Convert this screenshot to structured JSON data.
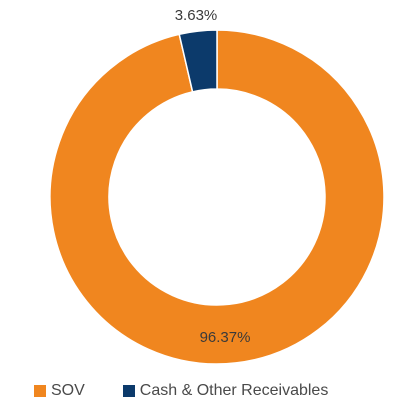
{
  "chart_data": {
    "type": "pie",
    "donut": true,
    "slices": [
      {
        "name": "SOV",
        "value": 96.37,
        "label": "96.37%",
        "color": "#F0861F"
      },
      {
        "name": "Cash & Other Receivables",
        "value": 3.63,
        "label": "3.63%",
        "color": "#0C3A6B"
      }
    ],
    "legend": {
      "position": "bottom-left",
      "items": [
        "SOV",
        "Cash & Other Receivables"
      ]
    }
  }
}
